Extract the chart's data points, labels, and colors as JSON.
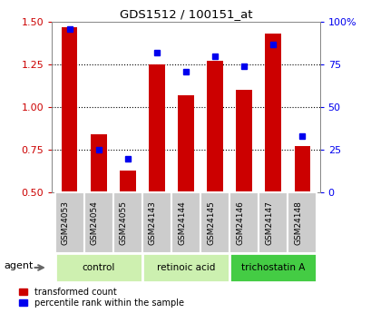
{
  "title": "GDS1512 / 100151_at",
  "categories": [
    "GSM24053",
    "GSM24054",
    "GSM24055",
    "GSM24143",
    "GSM24144",
    "GSM24145",
    "GSM24146",
    "GSM24147",
    "GSM24148"
  ],
  "red_values": [
    1.47,
    0.84,
    0.63,
    1.25,
    1.07,
    1.27,
    1.1,
    1.43,
    0.77
  ],
  "blue_values": [
    96,
    25,
    20,
    82,
    71,
    80,
    74,
    87,
    33
  ],
  "groups": [
    {
      "label": "control",
      "indices": [
        0,
        1,
        2
      ],
      "color": "#cef0b0"
    },
    {
      "label": "retinoic acid",
      "indices": [
        3,
        4,
        5
      ],
      "color": "#ccf0b0"
    },
    {
      "label": "trichostatin A",
      "indices": [
        6,
        7,
        8
      ],
      "color": "#44cc44"
    }
  ],
  "ylim_left": [
    0.5,
    1.5
  ],
  "ylim_right": [
    0,
    100
  ],
  "red_color": "#cc0000",
  "blue_color": "#0000ee",
  "bar_width": 0.55,
  "marker_size": 5,
  "background_color": "#ffffff",
  "sample_box_color": "#cccccc",
  "left_yticks": [
    0.5,
    0.75,
    1.0,
    1.25,
    1.5
  ],
  "right_yticks": [
    0,
    25,
    50,
    75,
    100
  ],
  "grid_yvals": [
    0.75,
    1.0,
    1.25
  ]
}
